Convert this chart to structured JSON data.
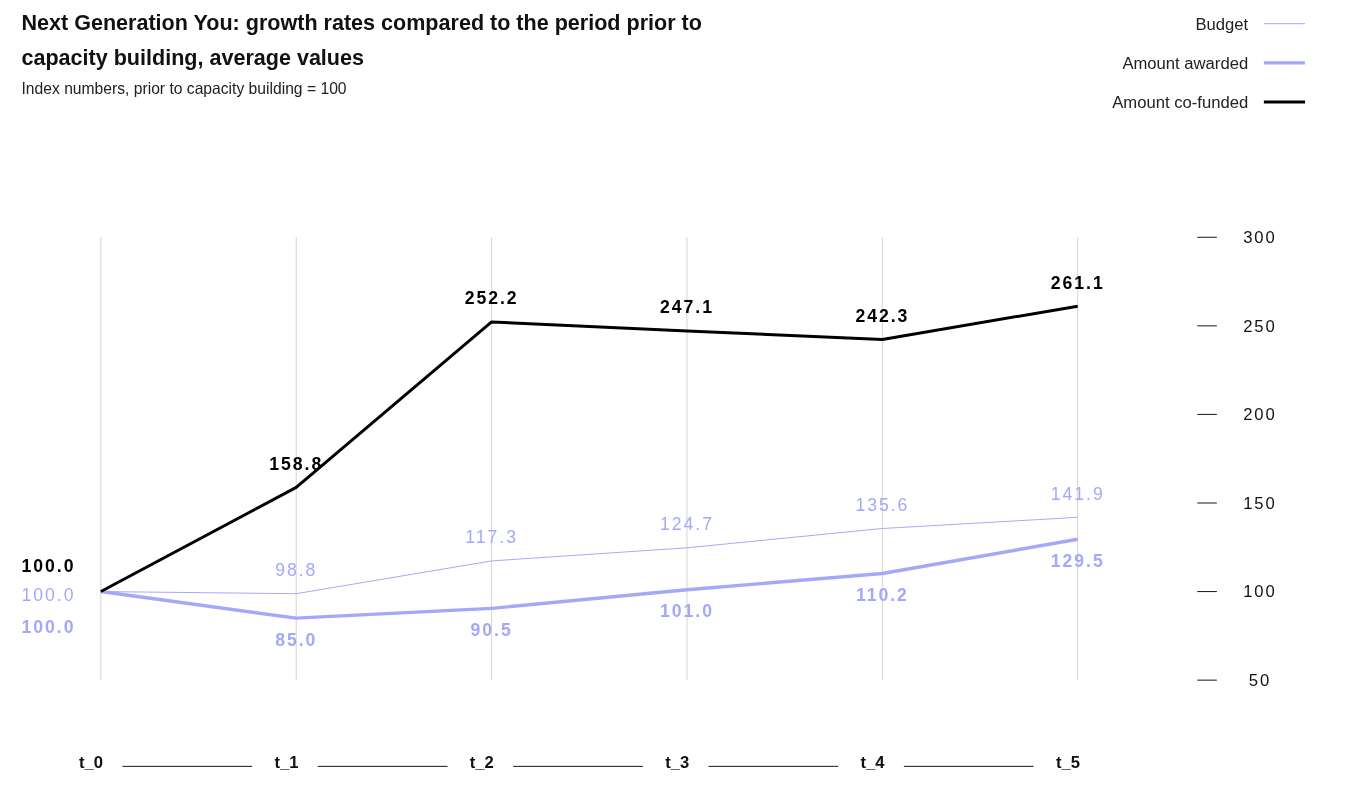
{
  "chart_data": {
    "type": "line",
    "title": "Next Generation You: growth rates compared to the period prior to capacity building, average values",
    "subtitle": "Index numbers, prior to capacity building = 100",
    "categories": [
      "t_0",
      "t_1",
      "t_2",
      "t_3",
      "t_4",
      "t_5"
    ],
    "series": [
      {
        "name": "Budget",
        "color": "#a3a9f7",
        "values": [
          100.0,
          98.8,
          117.3,
          124.7,
          135.6,
          141.9
        ],
        "value_labels": [
          "100.0",
          "98.8",
          "117.3",
          "124.7",
          "135.6",
          "141.9"
        ]
      },
      {
        "name": "Amount awarded",
        "color": "#a3a9f7",
        "values": [
          100.0,
          85.0,
          90.5,
          101.0,
          110.2,
          129.5
        ],
        "value_labels": [
          "100.0",
          "85.0",
          "90.5",
          "101.0",
          "110.2",
          "129.5"
        ]
      },
      {
        "name": "Amount co-funded",
        "color": "#000000",
        "values": [
          100.0,
          158.8,
          252.2,
          247.1,
          242.3,
          261.1
        ],
        "value_labels": [
          "100.0",
          "158.8",
          "252.2",
          "247.1",
          "242.3",
          "261.1"
        ]
      }
    ],
    "ylim": [
      50,
      300
    ],
    "yticks": [
      50,
      100,
      150,
      200,
      250,
      300
    ],
    "grid": "x",
    "legend": "top right",
    "marker": "none",
    "line_style": "solid"
  }
}
